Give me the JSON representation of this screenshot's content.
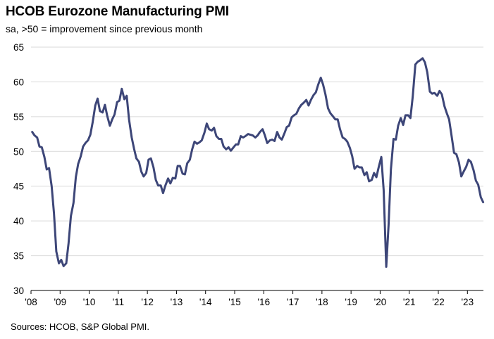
{
  "title": "HCOB Eurozone Manufacturing PMI",
  "subtitle": "sa, >50 = improvement  since previous month",
  "source": "Sources: HCOB, S&P Global PMI.",
  "colors": {
    "line": "#3d4678",
    "grid": "#d9d9d9",
    "axis": "#000000"
  },
  "chart_data": {
    "type": "line",
    "title": "HCOB Eurozone Manufacturing PMI",
    "subtitle": "sa, >50 = improvement  since previous month",
    "xlabel": "",
    "ylabel": "",
    "ylim": [
      30,
      65
    ],
    "yticks": [
      30,
      35,
      40,
      45,
      50,
      55,
      60,
      65
    ],
    "xlim": [
      2008.0,
      2023.55
    ],
    "xticks": [
      {
        "value": 2008,
        "label": "'08"
      },
      {
        "value": 2009,
        "label": "'09"
      },
      {
        "value": 2010,
        "label": "'10"
      },
      {
        "value": 2011,
        "label": "'11"
      },
      {
        "value": 2012,
        "label": "'12"
      },
      {
        "value": 2013,
        "label": "'13"
      },
      {
        "value": 2014,
        "label": "'14"
      },
      {
        "value": 2015,
        "label": "'15"
      },
      {
        "value": 2016,
        "label": "'16"
      },
      {
        "value": 2017,
        "label": "'17"
      },
      {
        "value": 2018,
        "label": "'18"
      },
      {
        "value": 2019,
        "label": "'19"
      },
      {
        "value": 2020,
        "label": "'20"
      },
      {
        "value": 2021,
        "label": "'21"
      },
      {
        "value": 2022,
        "label": "'22"
      },
      {
        "value": 2023,
        "label": "'23"
      }
    ],
    "grid": true,
    "legend": "none",
    "series": [
      {
        "x": [
          2008.04,
          2008.12,
          2008.21,
          2008.29,
          2008.37,
          2008.46,
          2008.54,
          2008.62,
          2008.71,
          2008.79,
          2008.87,
          2008.96,
          2009.04,
          2009.12,
          2009.21,
          2009.29,
          2009.37,
          2009.46,
          2009.54,
          2009.62,
          2009.71,
          2009.79,
          2009.87,
          2009.96,
          2010.04,
          2010.12,
          2010.21,
          2010.29,
          2010.37,
          2010.46,
          2010.54,
          2010.62,
          2010.71,
          2010.79,
          2010.87,
          2010.96,
          2011.04,
          2011.12,
          2011.21,
          2011.29,
          2011.37,
          2011.46,
          2011.54,
          2011.62,
          2011.71,
          2011.79,
          2011.87,
          2011.96,
          2012.04,
          2012.12,
          2012.21,
          2012.29,
          2012.37,
          2012.46,
          2012.54,
          2012.62,
          2012.71,
          2012.79,
          2012.87,
          2012.96,
          2013.04,
          2013.12,
          2013.21,
          2013.29,
          2013.37,
          2013.46,
          2013.54,
          2013.62,
          2013.71,
          2013.79,
          2013.87,
          2013.96,
          2014.04,
          2014.12,
          2014.21,
          2014.29,
          2014.37,
          2014.46,
          2014.54,
          2014.62,
          2014.71,
          2014.79,
          2014.87,
          2014.96,
          2015.04,
          2015.12,
          2015.21,
          2015.29,
          2015.37,
          2015.46,
          2015.54,
          2015.62,
          2015.71,
          2015.79,
          2015.87,
          2015.96,
          2016.04,
          2016.12,
          2016.21,
          2016.29,
          2016.37,
          2016.46,
          2016.54,
          2016.62,
          2016.71,
          2016.79,
          2016.87,
          2016.96,
          2017.04,
          2017.12,
          2017.21,
          2017.29,
          2017.37,
          2017.46,
          2017.54,
          2017.62,
          2017.71,
          2017.79,
          2017.87,
          2017.96,
          2018.04,
          2018.12,
          2018.21,
          2018.29,
          2018.37,
          2018.46,
          2018.54,
          2018.62,
          2018.71,
          2018.79,
          2018.87,
          2018.96,
          2019.04,
          2019.12,
          2019.21,
          2019.29,
          2019.37,
          2019.46,
          2019.54,
          2019.62,
          2019.71,
          2019.79,
          2019.87,
          2019.96,
          2020.04,
          2020.12,
          2020.21,
          2020.29,
          2020.37,
          2020.46,
          2020.54,
          2020.62,
          2020.71,
          2020.79,
          2020.87,
          2020.96,
          2021.04,
          2021.12,
          2021.21,
          2021.29,
          2021.37,
          2021.46,
          2021.54,
          2021.62,
          2021.71,
          2021.79,
          2021.87,
          2021.96,
          2022.04,
          2022.12,
          2022.21,
          2022.29,
          2022.37,
          2022.46,
          2022.54,
          2022.62,
          2022.71,
          2022.79,
          2022.87,
          2022.96,
          2023.04,
          2023.12,
          2023.21,
          2023.29,
          2023.37,
          2023.46,
          2023.54
        ],
        "values": [
          52.8,
          52.3,
          52.0,
          50.7,
          50.6,
          49.2,
          47.4,
          47.6,
          45.0,
          41.1,
          35.6,
          33.9,
          34.4,
          33.5,
          33.9,
          36.8,
          40.7,
          42.6,
          46.3,
          48.2,
          49.3,
          50.7,
          51.2,
          51.6,
          52.4,
          54.2,
          56.6,
          57.6,
          55.8,
          55.6,
          56.7,
          55.1,
          53.7,
          54.6,
          55.3,
          57.1,
          57.3,
          59.0,
          57.5,
          58.0,
          54.6,
          52.0,
          50.4,
          49.0,
          48.5,
          47.1,
          46.4,
          46.9,
          48.8,
          49.0,
          47.7,
          45.9,
          45.1,
          45.1,
          44.0,
          45.1,
          46.1,
          45.4,
          46.2,
          46.1,
          47.9,
          47.9,
          46.8,
          46.7,
          48.3,
          48.8,
          50.3,
          51.4,
          51.1,
          51.3,
          51.6,
          52.7,
          54.0,
          53.2,
          53.0,
          53.4,
          52.2,
          51.8,
          51.8,
          50.7,
          50.3,
          50.6,
          50.1,
          50.6,
          51.0,
          51.0,
          52.2,
          52.0,
          52.2,
          52.5,
          52.4,
          52.3,
          52.0,
          52.3,
          52.8,
          53.2,
          52.3,
          51.2,
          51.6,
          51.7,
          51.5,
          52.8,
          52.0,
          51.7,
          52.6,
          53.5,
          53.7,
          54.9,
          55.2,
          55.4,
          56.2,
          56.7,
          57.0,
          57.4,
          56.6,
          57.4,
          58.1,
          58.5,
          59.6,
          60.6,
          59.6,
          58.2,
          56.2,
          55.5,
          55.1,
          54.6,
          54.6,
          53.2,
          52.0,
          51.8,
          51.4,
          50.5,
          49.3,
          47.5,
          47.9,
          47.7,
          47.7,
          46.6,
          47.0,
          45.7,
          45.9,
          46.9,
          46.3,
          47.9,
          49.2,
          44.5,
          33.4,
          39.4,
          47.4,
          51.8,
          51.7,
          53.7,
          54.8,
          53.8,
          55.2,
          55.2,
          54.8,
          57.9,
          62.5,
          62.9,
          63.1,
          63.4,
          62.8,
          61.4,
          58.6,
          58.3,
          58.4,
          58.0,
          58.7,
          58.2,
          56.5,
          55.5,
          54.6,
          52.1,
          49.8,
          49.6,
          48.4,
          46.4,
          47.1,
          47.8,
          48.8,
          48.5,
          47.3,
          45.8,
          45.2,
          43.4,
          42.7
        ]
      }
    ]
  }
}
